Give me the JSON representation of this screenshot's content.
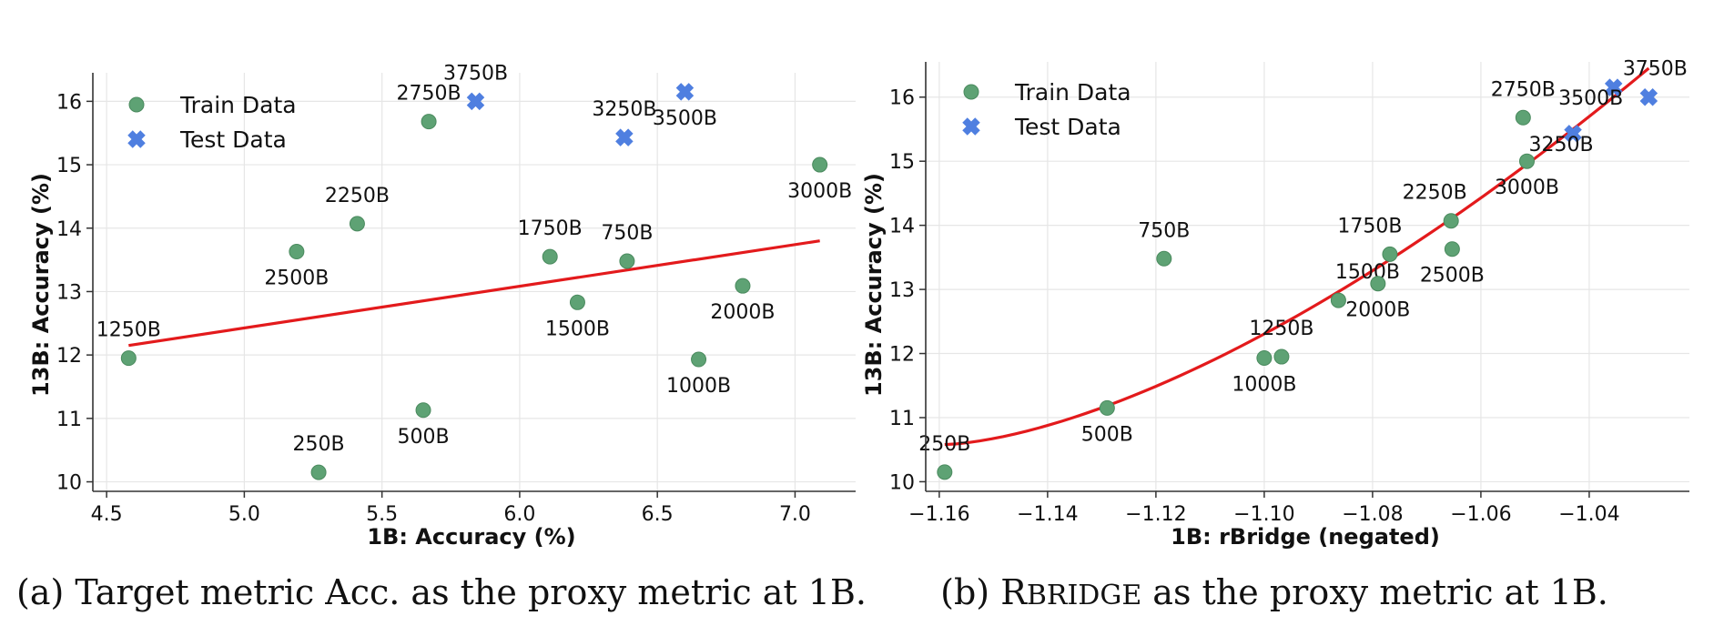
{
  "chart_data": [
    {
      "type": "scatter",
      "xlabel": "1B: Accuracy (%)",
      "ylabel": "13B: Accuracy (%)",
      "xlim": [
        4.45,
        7.22
      ],
      "ylim": [
        9.85,
        16.45
      ],
      "xticks": [
        4.5,
        5.0,
        5.5,
        6.0,
        6.5,
        7.0
      ],
      "xtick_labels": [
        "4.5",
        "5.0",
        "5.5",
        "6.0",
        "6.5",
        "7.0"
      ],
      "yticks": [
        10,
        11,
        12,
        13,
        14,
        15,
        16
      ],
      "ytick_labels": [
        "10",
        "11",
        "12",
        "13",
        "14",
        "15",
        "16"
      ],
      "grid": true,
      "legend_position": "top-left",
      "legend": [
        "Train Data",
        "Test Data"
      ],
      "series": [
        {
          "name": "Train Data",
          "marker": "circle",
          "points": [
            {
              "label": "250B",
              "x": 5.27,
              "y": 10.15
            },
            {
              "label": "500B",
              "x": 5.65,
              "y": 11.13
            },
            {
              "label": "750B",
              "x": 6.39,
              "y": 13.48
            },
            {
              "label": "1000B",
              "x": 6.65,
              "y": 11.93
            },
            {
              "label": "1250B",
              "x": 4.58,
              "y": 11.95
            },
            {
              "label": "1500B",
              "x": 6.21,
              "y": 12.83
            },
            {
              "label": "1750B",
              "x": 6.11,
              "y": 13.55
            },
            {
              "label": "2000B",
              "x": 6.81,
              "y": 13.09
            },
            {
              "label": "2250B",
              "x": 5.41,
              "y": 14.07
            },
            {
              "label": "2500B",
              "x": 5.19,
              "y": 13.63
            },
            {
              "label": "2750B",
              "x": 5.67,
              "y": 15.68
            },
            {
              "label": "3000B",
              "x": 7.09,
              "y": 15.0
            }
          ]
        },
        {
          "name": "Test Data",
          "marker": "x",
          "points": [
            {
              "label": "3250B",
              "x": 6.38,
              "y": 15.43
            },
            {
              "label": "3500B",
              "x": 6.6,
              "y": 16.15
            },
            {
              "label": "3750B",
              "x": 5.84,
              "y": 16.0
            }
          ]
        }
      ],
      "fit": {
        "kind": "linear",
        "x": [
          4.58,
          7.09
        ],
        "y": [
          12.15,
          13.8
        ],
        "color": "#e31a1c"
      }
    },
    {
      "type": "scatter",
      "xlabel": "1B: rBridge (negated)",
      "ylabel": "13B: Accuracy (%)",
      "xlim": [
        -1.1625,
        -1.0215
      ],
      "ylim": [
        9.85,
        16.55
      ],
      "xticks": [
        -1.16,
        -1.14,
        -1.12,
        -1.1,
        -1.08,
        -1.06,
        -1.04
      ],
      "xtick_labels": [
        "−1.16",
        "−1.14",
        "−1.12",
        "−1.10",
        "−1.08",
        "−1.06",
        "−1.04"
      ],
      "yticks": [
        10,
        11,
        12,
        13,
        14,
        15,
        16
      ],
      "ytick_labels": [
        "10",
        "11",
        "12",
        "13",
        "14",
        "15",
        "16"
      ],
      "grid": true,
      "legend_position": "top-left",
      "legend": [
        "Train Data",
        "Test Data"
      ],
      "series": [
        {
          "name": "Train Data",
          "marker": "circle",
          "points": [
            {
              "label": "250B",
              "x": -1.159,
              "y": 10.15
            },
            {
              "label": "500B",
              "x": -1.129,
              "y": 11.15
            },
            {
              "label": "750B",
              "x": -1.1185,
              "y": 13.48
            },
            {
              "label": "1000B",
              "x": -1.1,
              "y": 11.93
            },
            {
              "label": "1250B",
              "x": -1.0968,
              "y": 11.95
            },
            {
              "label": "1500B",
              "x": -1.0863,
              "y": 12.83
            },
            {
              "label": "1750B",
              "x": -1.0768,
              "y": 13.55
            },
            {
              "label": "2000B",
              "x": -1.079,
              "y": 13.09
            },
            {
              "label": "2250B",
              "x": -1.0655,
              "y": 14.07
            },
            {
              "label": "2500B",
              "x": -1.0653,
              "y": 13.63
            },
            {
              "label": "2750B",
              "x": -1.0522,
              "y": 15.68
            },
            {
              "label": "3000B",
              "x": -1.0515,
              "y": 15.0
            }
          ]
        },
        {
          "name": "Test Data",
          "marker": "x",
          "points": [
            {
              "label": "3250B",
              "x": -1.043,
              "y": 15.43
            },
            {
              "label": "3500B",
              "x": -1.0355,
              "y": 16.15
            },
            {
              "label": "3750B",
              "x": -1.029,
              "y": 16.0
            }
          ]
        }
      ],
      "fit": {
        "kind": "quadratic",
        "x": [
          -1.159,
          -1.029
        ],
        "from_y": 10.58,
        "to_y": 16.45,
        "color": "#e31a1c"
      }
    }
  ],
  "captions": {
    "a": "(a) Target metric Acc. as the proxy metric at 1B.",
    "b_prefix": "(b) R",
    "b_smallcaps": "BRIDGE",
    "b_suffix": " as the proxy metric at 1B."
  },
  "colors": {
    "train": "#5ea274",
    "test": "#4f7fe0",
    "fit": "#e31a1c",
    "grid": "#e6e6e6",
    "axis": "#333333"
  }
}
